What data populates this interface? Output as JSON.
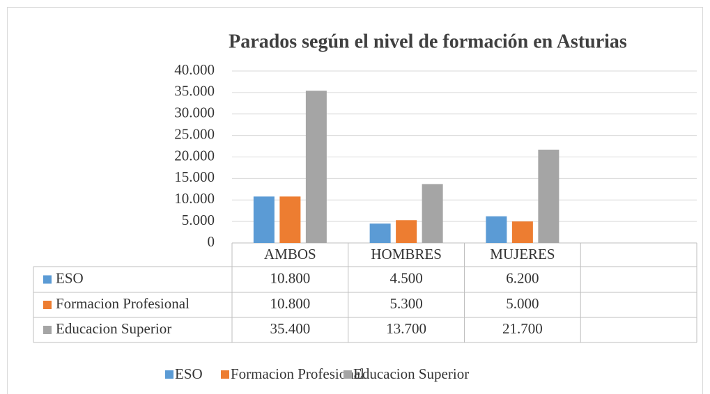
{
  "chart_data": {
    "type": "bar",
    "title": "Parados según el nivel de formación en Asturias",
    "categories": [
      "AMBOS",
      "HOMBRES",
      "MUJERES",
      null
    ],
    "series": [
      {
        "name": "ESO",
        "color": "#5b9bd5",
        "values": [
          10800,
          4500,
          6200,
          null
        ],
        "value_labels": [
          "10.800",
          "4.500",
          "6.200",
          null
        ]
      },
      {
        "name": "Formacion Profesional",
        "color": "#ed7d31",
        "values": [
          10800,
          5300,
          5000,
          null
        ],
        "value_labels": [
          "10.800",
          "5.300",
          "5.000",
          null
        ]
      },
      {
        "name": "Educacion Superior",
        "color": "#a5a5a5",
        "values": [
          35400,
          13700,
          21700,
          null
        ],
        "value_labels": [
          "35.400",
          "13.700",
          "21.700",
          null
        ]
      }
    ],
    "ylim": [
      0,
      40000
    ],
    "yticks": [
      0,
      {
        "value": 5000,
        "label": "5.000"
      },
      {
        "value": 10000,
        "label": "10.000"
      },
      {
        "value": 15000,
        "label": "15.000"
      },
      {
        "value": 20000,
        "label": "20.000"
      },
      {
        "value": 25000,
        "label": "25.000"
      },
      {
        "value": 30000,
        "label": "30.000"
      },
      {
        "value": 35000,
        "label": "35.000"
      },
      {
        "value": 40000,
        "label": "40.000"
      }
    ],
    "grid": true,
    "legend": "bottom"
  }
}
